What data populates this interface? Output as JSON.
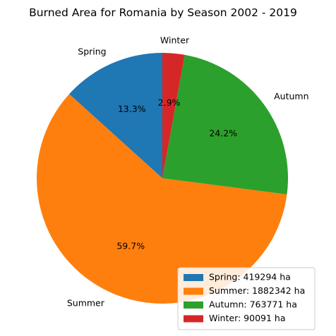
{
  "chart_data": {
    "type": "pie",
    "title": "Burned Area for Romania by Season 2002 - 2019",
    "slices": [
      {
        "label": "Spring",
        "value": 419294,
        "percent_label": "13.3%",
        "legend": "Spring: 419294 ha",
        "color": "#1f77b4"
      },
      {
        "label": "Summer",
        "value": 1882342,
        "percent_label": "59.7%",
        "legend": "Summer: 1882342 ha",
        "color": "#ff7f0e"
      },
      {
        "label": "Autumn",
        "value": 763771,
        "percent_label": "24.2%",
        "legend": "Autumn: 763771 ha",
        "color": "#2ca02c"
      },
      {
        "label": "Winter",
        "value": 90091,
        "percent_label": "2.9%",
        "legend": "Winter: 90091 ha",
        "color": "#d62728"
      }
    ],
    "start_angle_deg": 90,
    "direction": "counterclockwise",
    "legend_position": "lower right"
  }
}
